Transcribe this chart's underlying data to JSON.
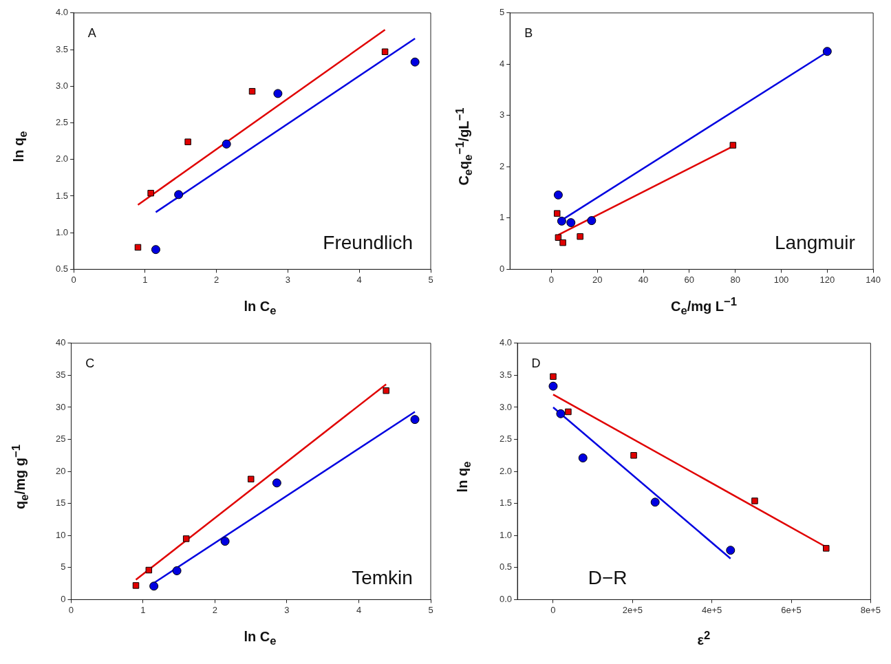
{
  "chart_data": [
    {
      "type": "scatter",
      "xlabel": "ln C$_{e}$",
      "ylabel": "ln q$_{e}$",
      "xlim": [
        0,
        5
      ],
      "xticks": [
        0,
        1,
        2,
        3,
        4,
        5
      ],
      "ylim": [
        0.5,
        4
      ],
      "yticks": [
        0.5,
        {
          "value": 1,
          "label": "1.0"
        },
        1.5,
        {
          "value": 2,
          "label": "2.0"
        },
        2.5,
        {
          "value": 3,
          "label": "3.0"
        },
        3.5,
        {
          "value": 4,
          "label": "4.0"
        }
      ],
      "grid": false,
      "legend": false,
      "annotations": [
        "A",
        "Freundlich"
      ],
      "series": [
        {
          "type": "scatter",
          "marker": "square",
          "color": "#e00000",
          "x": [
            0.9,
            1.08,
            1.6,
            2.5,
            4.36
          ],
          "values": [
            0.8,
            1.54,
            2.24,
            2.93,
            3.47
          ]
        },
        {
          "type": "scatter",
          "marker": "circle",
          "color": "#0000e0",
          "x": [
            1.15,
            1.47,
            2.14,
            2.86,
            4.78
          ],
          "values": [
            0.77,
            1.52,
            2.21,
            2.9,
            3.33
          ]
        },
        {
          "type": "line",
          "color": "#e00000",
          "x": [
            0.9,
            4.36
          ],
          "values": [
            1.38,
            3.77
          ]
        },
        {
          "type": "line",
          "color": "#0000e0",
          "x": [
            1.15,
            4.78
          ],
          "values": [
            1.28,
            3.65
          ]
        }
      ]
    },
    {
      "type": "scatter",
      "xlabel": "C$_{e}$/mg L$^{−1}$",
      "ylabel": "C$_{e}$q$_{e}$$^{−1}$/gL$^{−1}$",
      "xlim": [
        -18,
        140
      ],
      "xticks": [
        0,
        20,
        40,
        60,
        80,
        100,
        120,
        140
      ],
      "ylim": [
        0,
        5
      ],
      "yticks": [
        0,
        1,
        2,
        3,
        4,
        5
      ],
      "grid": false,
      "legend": false,
      "annotations": [
        "B",
        "Langmuir"
      ],
      "series": [
        {
          "type": "scatter",
          "marker": "square",
          "color": "#e00000",
          "x": [
            2.5,
            3,
            5,
            12.5,
            79
          ],
          "values": [
            1.09,
            0.62,
            0.52,
            0.64,
            2.42
          ]
        },
        {
          "type": "scatter",
          "marker": "circle",
          "color": "#0000e0",
          "x": [
            3,
            4.5,
            8.5,
            17.5,
            120
          ],
          "values": [
            1.45,
            0.94,
            0.91,
            0.95,
            4.25
          ]
        },
        {
          "type": "line",
          "color": "#e00000",
          "x": [
            3,
            79
          ],
          "values": [
            0.67,
            2.4
          ]
        },
        {
          "type": "line",
          "color": "#0000e0",
          "x": [
            4.5,
            120
          ],
          "values": [
            0.96,
            4.24
          ]
        }
      ]
    },
    {
      "type": "scatter",
      "xlabel": "ln C$_{e}$",
      "ylabel": "q$_{e}$/mg g$^{−1}$",
      "xlim": [
        0,
        5
      ],
      "xticks": [
        0,
        1,
        2,
        3,
        4,
        5
      ],
      "ylim": [
        0,
        40
      ],
      "yticks": [
        0,
        5,
        10,
        15,
        20,
        25,
        30,
        35,
        40
      ],
      "grid": false,
      "legend": false,
      "annotations": [
        "C",
        "Temkin"
      ],
      "series": [
        {
          "type": "scatter",
          "marker": "square",
          "color": "#e00000",
          "x": [
            0.9,
            1.08,
            1.6,
            2.5,
            4.38
          ],
          "values": [
            2.2,
            4.6,
            9.5,
            18.8,
            32.6
          ]
        },
        {
          "type": "scatter",
          "marker": "circle",
          "color": "#0000e0",
          "x": [
            1.15,
            1.47,
            2.14,
            2.86,
            4.78
          ],
          "values": [
            2.1,
            4.5,
            9.1,
            18.2,
            28.1
          ]
        },
        {
          "type": "line",
          "color": "#e00000",
          "x": [
            0.9,
            4.38
          ],
          "values": [
            3.1,
            33.6
          ]
        },
        {
          "type": "line",
          "color": "#0000e0",
          "x": [
            1.15,
            4.78
          ],
          "values": [
            2.6,
            29.3
          ]
        }
      ]
    },
    {
      "type": "scatter",
      "xlabel": "ε$^{2}$",
      "ylabel": "ln q$_{e}$",
      "xlim": [
        -90000,
        800000
      ],
      "xticks": [
        0,
        {
          "value": 200000,
          "label": "2e+5"
        },
        {
          "value": 400000,
          "label": "4e+5"
        },
        {
          "value": 600000,
          "label": "6e+5"
        },
        {
          "value": 800000,
          "label": "8e+5"
        }
      ],
      "ylim": [
        0,
        4
      ],
      "yticks": [
        {
          "value": 0,
          "label": "0.0"
        },
        0.5,
        {
          "value": 1,
          "label": "1.0"
        },
        1.5,
        {
          "value": 2,
          "label": "2.0"
        },
        2.5,
        {
          "value": 3,
          "label": "3.0"
        },
        3.5,
        {
          "value": 4,
          "label": "4.0"
        }
      ],
      "grid": false,
      "legend": false,
      "annotations": [
        "D",
        "D−R"
      ],
      "series": [
        {
          "type": "scatter",
          "marker": "square",
          "color": "#e00000",
          "x": [
            0,
            38000,
            203000,
            508000,
            688000
          ],
          "values": [
            3.48,
            2.93,
            2.25,
            1.54,
            0.8
          ]
        },
        {
          "type": "scatter",
          "marker": "circle",
          "color": "#0000e0",
          "x": [
            0,
            19000,
            75000,
            257000,
            447000
          ],
          "values": [
            3.33,
            2.9,
            2.21,
            1.52,
            0.77
          ]
        },
        {
          "type": "line",
          "color": "#e00000",
          "x": [
            0,
            688000
          ],
          "values": [
            3.2,
            0.82
          ]
        },
        {
          "type": "line",
          "color": "#0000e0",
          "x": [
            0,
            447000
          ],
          "values": [
            3.0,
            0.64
          ]
        }
      ]
    }
  ]
}
